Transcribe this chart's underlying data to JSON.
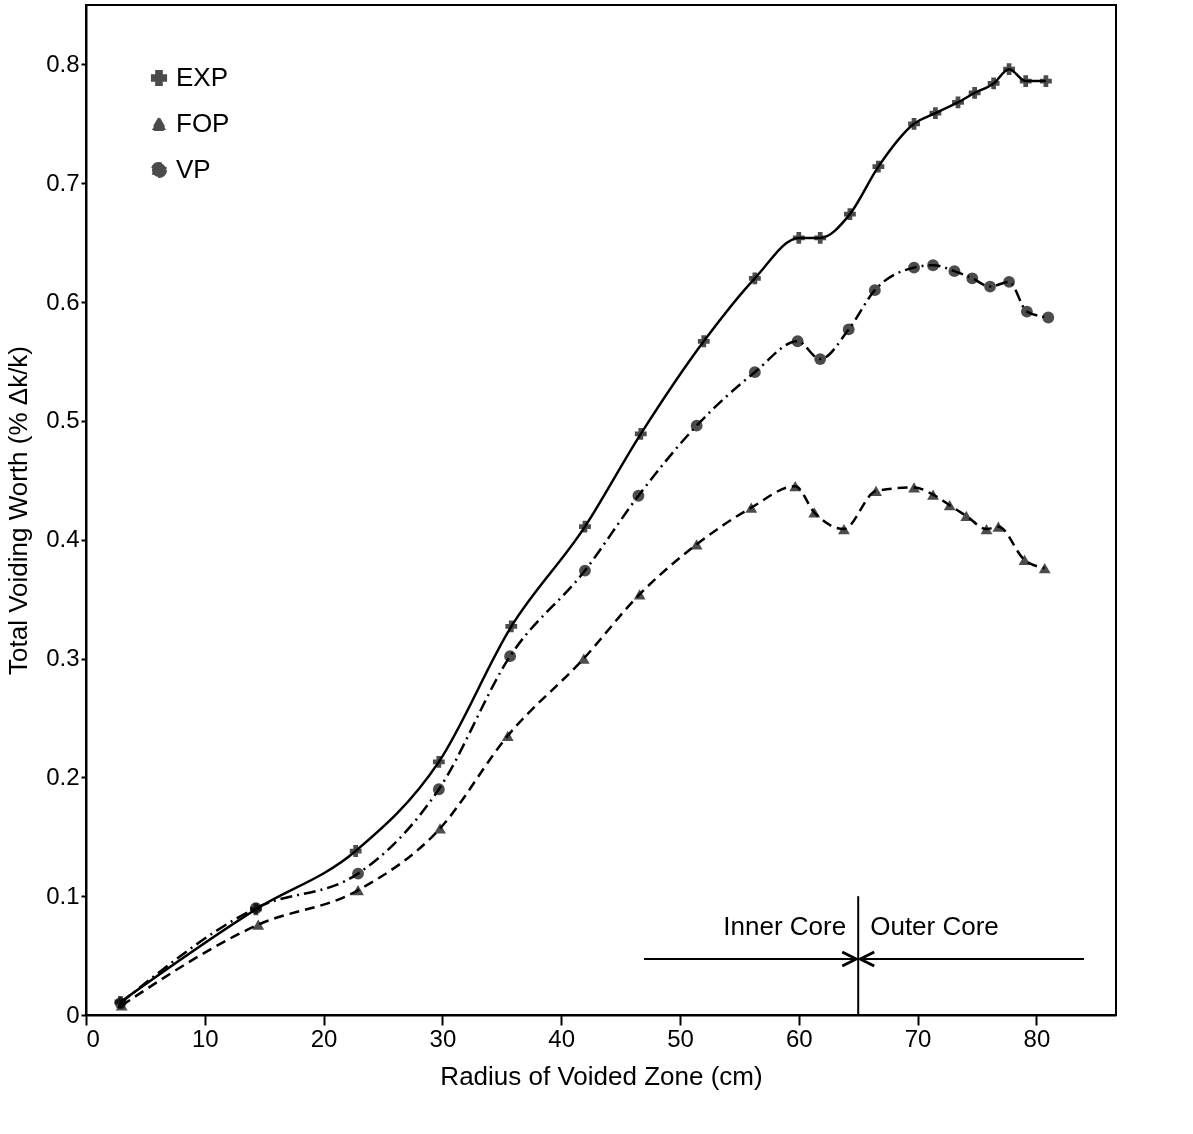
{
  "chart_data": {
    "type": "line",
    "xlabel": "Radius of Voided Zone (cm)",
    "ylabel": "Total Voiding Worth (% Δk/k)",
    "xlim": [
      0,
      86.7
    ],
    "ylim": [
      0,
      0.85
    ],
    "xticks": [
      0,
      10,
      20,
      30,
      40,
      50,
      60,
      70,
      80
    ],
    "yticks": [
      0,
      0.1,
      0.2,
      0.3,
      0.4,
      0.5,
      0.6,
      0.7,
      0.8
    ],
    "grid": false,
    "legend": "top left",
    "series": [
      {
        "name": "EXP",
        "color": "#000000",
        "marker": "cross",
        "line_style": "solid",
        "x": [
          2.9,
          14.3,
          22.7,
          29.7,
          35.8,
          42.0,
          46.7,
          52.0,
          56.3,
          60.0,
          61.8,
          64.3,
          66.7,
          69.7,
          71.5,
          73.4,
          74.8,
          76.4,
          77.7,
          79.1,
          80.8
        ],
        "values": [
          0.011,
          0.089,
          0.138,
          0.213,
          0.327,
          0.411,
          0.489,
          0.567,
          0.62,
          0.654,
          0.654,
          0.674,
          0.714,
          0.75,
          0.759,
          0.768,
          0.776,
          0.784,
          0.796,
          0.786,
          0.786
        ]
      },
      {
        "name": "FOP",
        "color": "#000000",
        "marker": "triangle",
        "line_style": "dashed",
        "x": [
          3.0,
          14.5,
          22.9,
          29.8,
          35.5,
          41.9,
          46.6,
          51.4,
          56.0,
          59.7,
          61.3,
          63.8,
          66.5,
          69.7,
          71.3,
          72.7,
          74.1,
          75.8,
          76.8,
          79.0,
          80.7
        ],
        "values": [
          0.008,
          0.076,
          0.105,
          0.157,
          0.235,
          0.3,
          0.354,
          0.396,
          0.427,
          0.445,
          0.423,
          0.409,
          0.441,
          0.444,
          0.438,
          0.429,
          0.42,
          0.409,
          0.411,
          0.383,
          0.376
        ]
      },
      {
        "name": "VP",
        "color": "#000000",
        "marker": "circle",
        "line_style": "dashdot",
        "x": [
          2.9,
          14.3,
          22.9,
          29.7,
          35.7,
          42.0,
          46.5,
          51.4,
          56.3,
          59.9,
          61.8,
          64.2,
          66.4,
          69.7,
          71.3,
          73.1,
          74.6,
          76.1,
          77.7,
          79.2,
          81.0
        ],
        "values": [
          0.01,
          0.09,
          0.119,
          0.19,
          0.302,
          0.374,
          0.437,
          0.496,
          0.541,
          0.567,
          0.552,
          0.577,
          0.61,
          0.629,
          0.631,
          0.626,
          0.62,
          0.613,
          0.617,
          0.592,
          0.587
        ]
      }
    ],
    "ref_lines": [
      {
        "axis": "x",
        "value": 65,
        "color": "#000000"
      }
    ],
    "annotations": [
      "Inner Core",
      "Outer Core"
    ]
  }
}
